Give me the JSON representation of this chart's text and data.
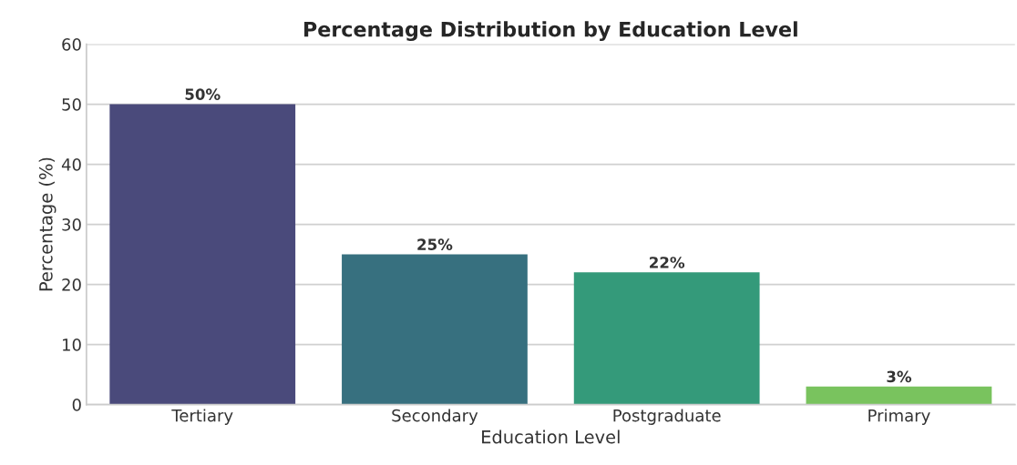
{
  "chart_data": {
    "type": "bar",
    "title": "Percentage Distribution by Education Level",
    "xlabel": "Education Level",
    "ylabel": "Percentage (%)",
    "categories": [
      "Tertiary",
      "Secondary",
      "Postgraduate",
      "Primary"
    ],
    "values": [
      50,
      25,
      22,
      3
    ],
    "colors": [
      "#4a4a7b",
      "#37707f",
      "#349a7a",
      "#79c35e"
    ],
    "value_labels": [
      "50%",
      "25%",
      "22%",
      "3%"
    ],
    "ylim": [
      0,
      60
    ],
    "yticks": [
      0,
      10,
      20,
      30,
      40,
      50,
      60
    ],
    "grid": "y"
  }
}
